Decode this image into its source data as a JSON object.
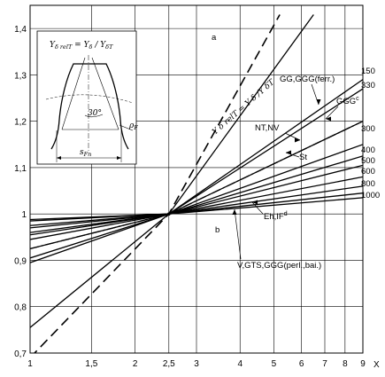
{
  "chart_data": {
    "type": "line",
    "xlabel": "X",
    "ylabel": "",
    "x_scale": "log",
    "xlim": [
      1,
      9
    ],
    "ylim": [
      0.7,
      1.45
    ],
    "grid": true,
    "x_ticks": [
      1,
      1.5,
      2,
      2.5,
      3,
      4,
      5,
      6,
      7,
      8,
      9
    ],
    "x_tick_labels": [
      "1",
      "1,5",
      "2",
      "2,5",
      "3",
      "4",
      "5",
      "6",
      "7",
      "8",
      "9"
    ],
    "y_ticks": [
      0.7,
      0.8,
      0.9,
      1.0,
      1.1,
      1.2,
      1.3,
      1.4
    ],
    "y_tick_labels": [
      "0,7",
      "0,8",
      "0,9",
      "1",
      "1,1",
      "1,2",
      "1,3",
      "1,4"
    ],
    "pivot": {
      "x": 2.5,
      "y": 1.0
    },
    "series": [
      {
        "name": "a",
        "style": "dashed",
        "x": [
          1,
          2.5,
          5.2
        ],
        "y": [
          0.69,
          1.0,
          1.43
        ]
      },
      {
        "name": "b",
        "style": "solid",
        "x": [
          1,
          2.5,
          6.5
        ],
        "y": [
          0.755,
          1.0,
          1.43
        ]
      },
      {
        "name": "GG,GGG(ferr.)",
        "style": "solid",
        "x": [
          1,
          2.5,
          9
        ],
        "y": [
          0.895,
          1.0,
          1.29
        ]
      },
      {
        "name": "",
        "style": "solid",
        "x": [
          1,
          2.5,
          9
        ],
        "y": [
          0.905,
          1.0,
          1.27
        ]
      },
      {
        "name": "NT,NV",
        "style": "solid",
        "x": [
          1,
          2.5,
          9
        ],
        "y": [
          0.925,
          1.0,
          1.2
        ]
      },
      {
        "name": "GGG(c)",
        "style": "dashdot",
        "x": [
          1,
          2.5,
          9
        ],
        "y": [
          0.925,
          1.0,
          1.2
        ]
      },
      {
        "name": "St",
        "style": "solid",
        "x": [
          1,
          2.5,
          9
        ],
        "y": [
          0.945,
          1.0,
          1.15
        ]
      },
      {
        "name": "",
        "style": "solid",
        "x": [
          1,
          2.5,
          9
        ],
        "y": [
          0.955,
          1.0,
          1.125
        ]
      },
      {
        "name": "",
        "style": "solid",
        "x": [
          1,
          2.5,
          9
        ],
        "y": [
          0.96,
          1.0,
          1.105
        ]
      },
      {
        "name": "",
        "style": "solid",
        "x": [
          1,
          2.5,
          9
        ],
        "y": [
          0.97,
          1.0,
          1.08
        ]
      },
      {
        "name": "Eh,IF(d)",
        "style": "solid",
        "x": [
          1,
          2.5,
          9
        ],
        "y": [
          0.975,
          1.0,
          1.06
        ]
      },
      {
        "name": "V,GTS,GGG(perl.,bai.)",
        "style": "solid",
        "x": [
          1,
          2.5,
          9
        ],
        "y": [
          0.985,
          1.0,
          1.045
        ]
      },
      {
        "name": "",
        "style": "solid",
        "x": [
          1,
          2.5,
          9
        ],
        "y": [
          0.988,
          1.0,
          1.035
        ]
      }
    ],
    "curve_values": [
      "150",
      "330",
      "300",
      "400",
      "500",
      "600",
      "800",
      "1000"
    ],
    "annotations": {
      "a": "a",
      "b": "b",
      "line_eq": "Y δ relT = Y δ /Y δT",
      "gg": "GG,GGG(ferr.)",
      "ntnv": "NT,NV",
      "gggc": "GGG",
      "gggc_sup": "c",
      "st": "St",
      "ehif": "Eh,IF",
      "ehif_sup": "d",
      "vgts": "V,GTS,GGG(perl.,bai.)"
    },
    "inset": {
      "title_Y": "Y",
      "title_sub1": "δ relT",
      "title_mid": " = Y",
      "title_sub2": "δ",
      "title_mid2": " / Y",
      "title_sub3": "δT",
      "angle": "30°",
      "rho": "ρ",
      "rho_sub": "F",
      "sfn": "s",
      "sfn_sub": "Fn"
    }
  }
}
